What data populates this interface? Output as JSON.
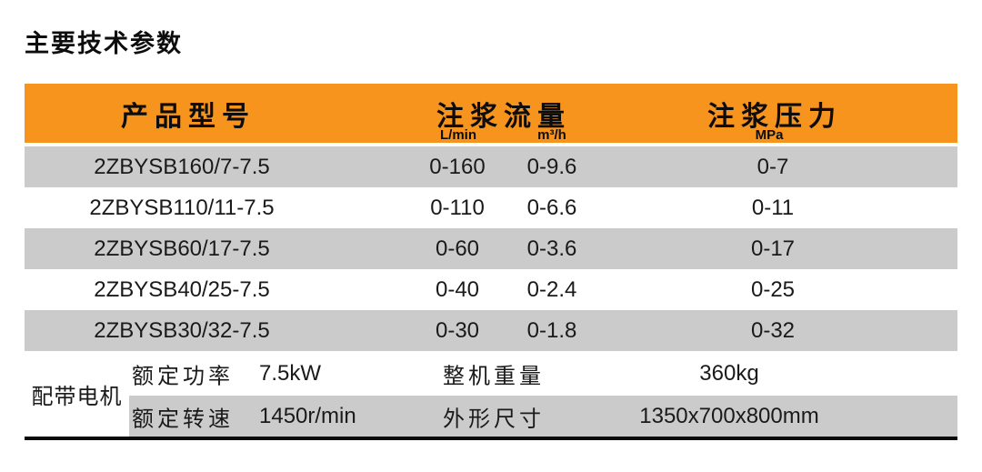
{
  "page": {
    "title": "主要技术参数"
  },
  "colors": {
    "accent_orange": "#F7941D",
    "row_gray": "#CBCBCB",
    "text": "#1A1A1A"
  },
  "table": {
    "header": {
      "col_model": "产品型号",
      "col_flow": "注浆流量",
      "col_pressure": "注浆压力",
      "unit_flow_lmin": "L/min",
      "unit_flow_m3h": "m³/h",
      "unit_pressure_mpa": "MPa"
    },
    "rows": [
      {
        "model": "2ZBYSB160/7-7.5",
        "flow_lmin": "0-160",
        "flow_m3h": "0-9.6",
        "pressure": "0-7"
      },
      {
        "model": "2ZBYSB110/11-7.5",
        "flow_lmin": "0-110",
        "flow_m3h": "0-6.6",
        "pressure": "0-11"
      },
      {
        "model": "2ZBYSB60/17-7.5",
        "flow_lmin": "0-60",
        "flow_m3h": "0-3.6",
        "pressure": "0-17"
      },
      {
        "model": "2ZBYSB40/25-7.5",
        "flow_lmin": "0-40",
        "flow_m3h": "0-2.4",
        "pressure": "0-25"
      },
      {
        "model": "2ZBYSB30/32-7.5",
        "flow_lmin": "0-30",
        "flow_m3h": "0-1.8",
        "pressure": "0-32"
      }
    ],
    "motor": {
      "group_label": "配带电机",
      "power_label": "额定功率",
      "power_value": "7.5kW",
      "weight_label": "整机重量",
      "weight_value": "360kg",
      "speed_label": "额定转速",
      "speed_value": "1450r/min",
      "size_label": "外形尺寸",
      "size_value": "1350x700x800mm"
    }
  }
}
